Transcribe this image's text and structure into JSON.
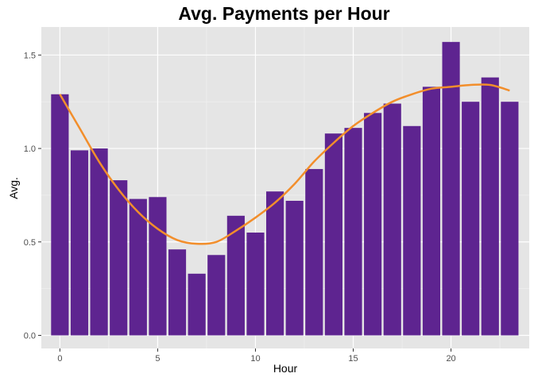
{
  "chart_data": {
    "type": "bar",
    "title": "Avg. Payments per Hour",
    "xlabel": "Hour",
    "ylabel": "Avg.",
    "x": [
      0,
      1,
      2,
      3,
      4,
      5,
      6,
      7,
      8,
      9,
      10,
      11,
      12,
      13,
      14,
      15,
      16,
      17,
      18,
      19,
      20,
      21,
      22,
      23
    ],
    "values": [
      1.29,
      0.99,
      1.0,
      0.83,
      0.73,
      0.74,
      0.46,
      0.33,
      0.43,
      0.64,
      0.55,
      0.77,
      0.72,
      0.89,
      1.08,
      1.11,
      1.19,
      1.24,
      1.12,
      1.33,
      1.57,
      1.25,
      1.38,
      1.25
    ],
    "xticks": [
      0,
      5,
      10,
      15,
      20
    ],
    "yticks": [
      0.0,
      0.5,
      1.0,
      1.5
    ],
    "ytick_labels": [
      "0.0",
      "0.5",
      "1.0",
      "1.5"
    ],
    "xlim": [
      -0.95,
      24.0
    ],
    "ylim": [
      -0.07,
      1.65
    ],
    "grid": true,
    "bar_color": "#5e2490",
    "smooth_line": {
      "color": "#f28e2b",
      "x": [
        0,
        1,
        2,
        3,
        4,
        5,
        6,
        7,
        8,
        9,
        10,
        11,
        12,
        13,
        14,
        15,
        16,
        17,
        18,
        19,
        20,
        21,
        22,
        23
      ],
      "y": [
        1.29,
        1.11,
        0.93,
        0.78,
        0.66,
        0.57,
        0.51,
        0.49,
        0.5,
        0.56,
        0.63,
        0.71,
        0.81,
        0.93,
        1.03,
        1.12,
        1.19,
        1.25,
        1.29,
        1.32,
        1.33,
        1.34,
        1.34,
        1.31
      ]
    },
    "panel_background": "#e5e5e5"
  }
}
